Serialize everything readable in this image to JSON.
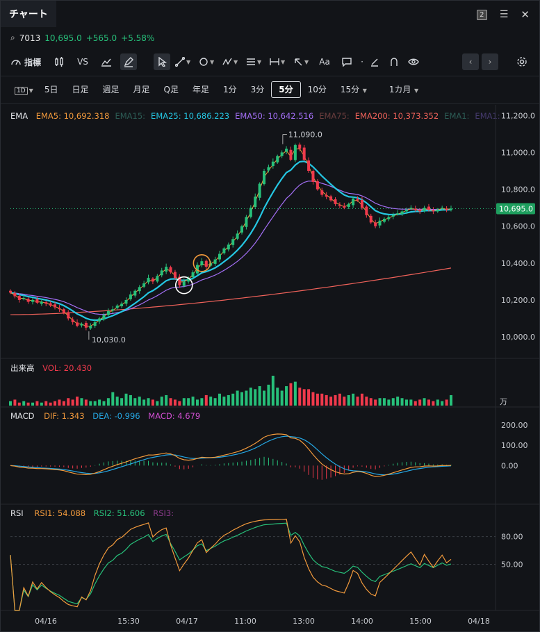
{
  "window": {
    "tab_title": "チャート",
    "badge": "2"
  },
  "quote": {
    "code": "7013",
    "price": "10,695.0",
    "change": "+565.0",
    "pct": "+5.58%"
  },
  "toolbar": {
    "indicators": "指標",
    "vs": "VS",
    "text_tool": "Aa"
  },
  "periods": {
    "items": [
      "5日",
      "日足",
      "週足",
      "月足",
      "Q足",
      "年足",
      "1分",
      "3分",
      "5分",
      "10分",
      "15分",
      "1カ月"
    ],
    "active": "5分",
    "first_icon": "1D"
  },
  "ema_legend": {
    "title": "EMA",
    "items": [
      {
        "label": "EMA5: 10,692.318",
        "color": "#f29a3c"
      },
      {
        "label": "EMA15:",
        "color": "#2c5c55"
      },
      {
        "label": "EMA25: 10,686.223",
        "color": "#25c7e3"
      },
      {
        "label": "EMA50: 10,642.516",
        "color": "#a36ff5"
      },
      {
        "label": "EMA75:",
        "color": "#6b3d3d"
      },
      {
        "label": "EMA200: 10,373.352",
        "color": "#f0625a"
      },
      {
        "label": "EMA1:",
        "color": "#2c5c55"
      },
      {
        "label": "EMA1:",
        "color": "#453a6e"
      }
    ]
  },
  "price_axis": {
    "ticks": [
      "11,200.0",
      "11,000.0",
      "10,800.0",
      "10,600.0",
      "10,400.0",
      "10,200.0",
      "10,000.0"
    ],
    "current": "10,695.0"
  },
  "annotations": {
    "high": "11,090.0",
    "low": "10,030.0"
  },
  "volume": {
    "title": "出来高",
    "label": "VOL: 20.430",
    "unit": "万"
  },
  "macd": {
    "title": "MACD",
    "dif": "DIF: 1.343",
    "dea": "DEA: -0.996",
    "macd": "MACD: 4.679",
    "ticks": [
      "200.00",
      "100.00",
      "0.00"
    ]
  },
  "rsi": {
    "title": "RSI",
    "rsi1": "RSI1: 54.088",
    "rsi2": "RSI2: 51.606",
    "rsi3": "RSI3:",
    "ticks": [
      "80.00",
      "50.00"
    ]
  },
  "time_axis": {
    "labels": [
      "04/16",
      "15:30",
      "04/17",
      "11:00",
      "13:00",
      "14:00",
      "15:00",
      "04/18"
    ]
  },
  "colors": {
    "up": "#27c07a",
    "down": "#f03a4c",
    "ema5": "#f29a3c",
    "ema25": "#25c7e3",
    "ema50": "#a36ff5",
    "ema200": "#f0625a",
    "dif": "#f29a3c",
    "dea": "#25a7e3",
    "rsi1": "#f29a3c",
    "rsi2": "#27c07a",
    "rsi3": "#8a3a8a"
  },
  "chart_data": {
    "type": "candlestick",
    "price_range": [
      9940,
      11220
    ],
    "closes": [
      10240,
      10220,
      10200,
      10210,
      10190,
      10200,
      10185,
      10190,
      10180,
      10170,
      10160,
      10150,
      10130,
      10100,
      10080,
      10060,
      10070,
      10050,
      10060,
      10080,
      10100,
      10120,
      10140,
      10150,
      10170,
      10180,
      10200,
      10230,
      10250,
      10270,
      10290,
      10320,
      10300,
      10330,
      10360,
      10380,
      10350,
      10320,
      10280,
      10300,
      10320,
      10350,
      10390,
      10410,
      10380,
      10400,
      10420,
      10450,
      10480,
      10500,
      10530,
      10560,
      10600,
      10650,
      10700,
      10760,
      10830,
      10900,
      10920,
      10950,
      10980,
      11000,
      11020,
      10960,
      11040,
      11020,
      10960,
      10900,
      10840,
      10800,
      10770,
      10760,
      10740,
      10720,
      10710,
      10700,
      10720,
      10750,
      10740,
      10700,
      10660,
      10620,
      10600,
      10630,
      10640,
      10650,
      10660,
      10670,
      10680,
      10690,
      10700,
      10690,
      10680,
      10700,
      10690,
      10680,
      10690,
      10700,
      10690,
      10695
    ],
    "volume": [
      3,
      4,
      2,
      3,
      2,
      2,
      3,
      2,
      3,
      2,
      3,
      4,
      3,
      5,
      4,
      6,
      5,
      4,
      3,
      3,
      4,
      3,
      5,
      9,
      6,
      5,
      8,
      7,
      5,
      6,
      4,
      5,
      4,
      3,
      6,
      7,
      5,
      4,
      3,
      5,
      5,
      6,
      4,
      5,
      7,
      6,
      5,
      8,
      6,
      7,
      8,
      10,
      9,
      10,
      12,
      11,
      13,
      10,
      14,
      20,
      12,
      10,
      13,
      15,
      16,
      12,
      11,
      11,
      9,
      8,
      8,
      7,
      6,
      7,
      8,
      6,
      7,
      8,
      6,
      8,
      6,
      5,
      4,
      5,
      5,
      4,
      5,
      6,
      5,
      4,
      4,
      3,
      4,
      5,
      4,
      3,
      4,
      3,
      4,
      7
    ],
    "ema200_end": 10373.352,
    "macd_range": [
      -180,
      220
    ],
    "rsi_range": [
      0,
      100
    ],
    "rsi_levels": [
      80,
      50
    ]
  }
}
